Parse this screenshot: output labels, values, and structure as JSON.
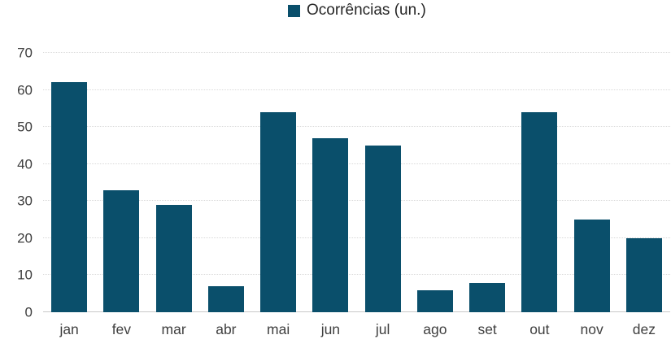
{
  "colors": {
    "bar": "#0a4f6b",
    "grid": "#d9d9d9",
    "baseline": "#c9c9c9",
    "axis_text": "#3f3f3f",
    "legend_text": "#262626"
  },
  "chart_data": {
    "type": "bar",
    "title": "",
    "legend": "Ocorrências (un.)",
    "legend_position": "top-center",
    "categories": [
      "jan",
      "fev",
      "mar",
      "abr",
      "mai",
      "jun",
      "jul",
      "ago",
      "set",
      "out",
      "nov",
      "dez"
    ],
    "values": [
      62,
      33,
      29,
      7,
      54,
      47,
      45,
      6,
      8,
      54,
      25,
      20
    ],
    "xlabel": "",
    "ylabel": "",
    "ylim": [
      0,
      70
    ],
    "ytick_step": 10,
    "yticks": [
      0,
      10,
      20,
      30,
      40,
      50,
      60,
      70
    ],
    "grid": "horizontal-dotted"
  }
}
